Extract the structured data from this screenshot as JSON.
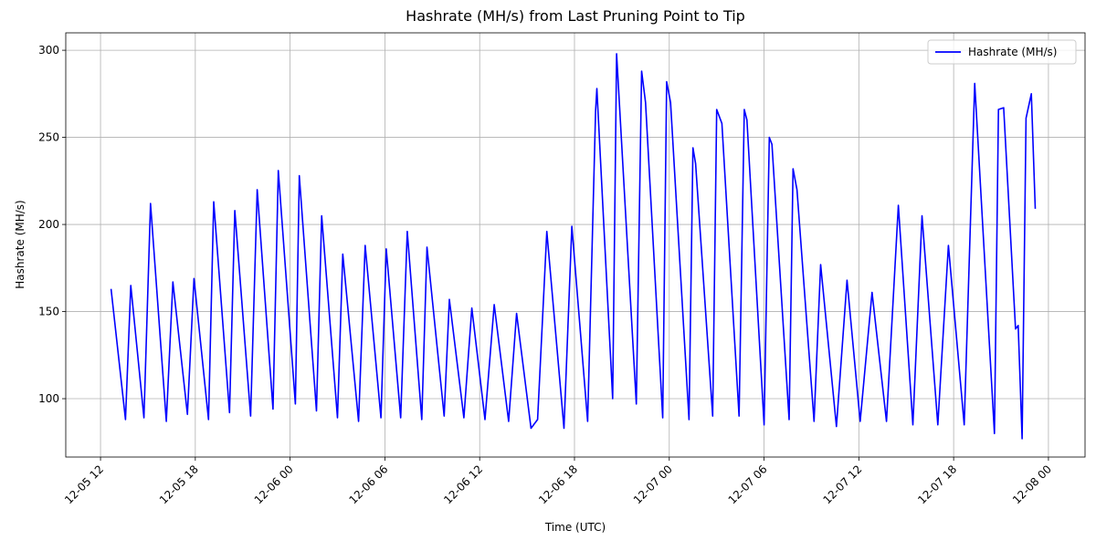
{
  "chart_data": {
    "type": "line",
    "title": "Hashrate (MH/s) from Last Pruning Point to Tip",
    "x_label": "Time (UTC)",
    "y_label": "Hashrate (MH/s)",
    "x": [
      "12-05 12:40",
      "12-05 13:35",
      "12-05 13:55",
      "12-05 14:45",
      "12-05 15:10",
      "12-05 16:10",
      "12-05 16:35",
      "12-05 17:30",
      "12-05 17:55",
      "12-05 18:50",
      "12-05 19:10",
      "12-05 20:10",
      "12-05 20:30",
      "12-05 21:30",
      "12-05 21:55",
      "12-05 22:55",
      "12-05 23:15",
      "12-06 00:20",
      "12-06 00:35",
      "12-06 01:40",
      "12-06 02:00",
      "12-06 03:00",
      "12-06 03:20",
      "12-06 04:20",
      "12-06 04:45",
      "12-06 05:45",
      "12-06 06:05",
      "12-06 07:00",
      "12-06 07:25",
      "12-06 08:20",
      "12-06 08:40",
      "12-06 09:45",
      "12-06 10:05",
      "12-06 11:00",
      "12-06 11:30",
      "12-06 12:20",
      "12-06 12:55",
      "12-06 13:50",
      "12-06 14:20",
      "12-06 15:15",
      "12-06 15:40",
      "12-06 16:15",
      "12-06 17:20",
      "12-06 17:50",
      "12-06 18:50",
      "12-06 19:20",
      "12-06 19:25",
      "12-06 20:25",
      "12-06 20:40",
      "12-06 21:55",
      "12-06 22:15",
      "12-06 22:30",
      "12-06 23:35",
      "12-06 23:50",
      "12-07 00:05",
      "12-07 01:15",
      "12-07 01:30",
      "12-07 01:40",
      "12-07 02:45",
      "12-07 03:00",
      "12-07 03:20",
      "12-07 04:25",
      "12-07 04:45",
      "12-07 04:55",
      "12-07 06:00",
      "12-07 06:20",
      "12-07 06:30",
      "12-07 07:35",
      "12-07 07:50",
      "12-07 08:05",
      "12-07 09:10",
      "12-07 09:35",
      "12-07 10:35",
      "12-07 11:15",
      "12-07 12:05",
      "12-07 12:50",
      "12-07 13:45",
      "12-07 14:30",
      "12-07 15:25",
      "12-07 16:00",
      "12-07 17:00",
      "12-07 17:40",
      "12-07 18:40",
      "12-07 19:20",
      "12-07 20:35",
      "12-07 20:50",
      "12-07 21:10",
      "12-07 21:55",
      "12-07 22:05",
      "12-07 22:20",
      "12-07 22:35",
      "12-07 22:55",
      "12-07 23:10"
    ],
    "series": [
      {
        "name": "Hashrate (MH/s)",
        "color": "#0000ff",
        "values": [
          163,
          88,
          165,
          89,
          212,
          87,
          167,
          91,
          169,
          88,
          213,
          92,
          208,
          90,
          220,
          94,
          231,
          97,
          228,
          93,
          205,
          89,
          183,
          87,
          188,
          89,
          186,
          89,
          196,
          88,
          187,
          90,
          157,
          89,
          152,
          88,
          154,
          87,
          149,
          83,
          88,
          196,
          83,
          199,
          87,
          265,
          278,
          100,
          298,
          97,
          288,
          270,
          89,
          282,
          270,
          88,
          244,
          235,
          90,
          266,
          258,
          90,
          266,
          260,
          85,
          250,
          246,
          88,
          232,
          220,
          87,
          177,
          84,
          168,
          87,
          161,
          87,
          211,
          85,
          205,
          85,
          188,
          85,
          281,
          80,
          266,
          267,
          140,
          142,
          77,
          261,
          275,
          209
        ]
      }
    ],
    "xlim": [
      "12-05 09:48",
      "12-08 02:19"
    ],
    "xticks": [
      {
        "value": "12-05 12:00",
        "label": "12-05 12"
      },
      {
        "value": "12-05 18:00",
        "label": "12-05 18"
      },
      {
        "value": "12-06 00:00",
        "label": "12-06 00"
      },
      {
        "value": "12-06 06:00",
        "label": "12-06 06"
      },
      {
        "value": "12-06 12:00",
        "label": "12-06 12"
      },
      {
        "value": "12-06 18:00",
        "label": "12-06 18"
      },
      {
        "value": "12-07 00:00",
        "label": "12-07 00"
      },
      {
        "value": "12-07 06:00",
        "label": "12-07 06"
      },
      {
        "value": "12-07 12:00",
        "label": "12-07 12"
      },
      {
        "value": "12-07 18:00",
        "label": "12-07 18"
      },
      {
        "value": "12-08 00:00",
        "label": "12-08 00"
      }
    ],
    "ylim": [
      66.5,
      310
    ],
    "yticks": [
      100,
      150,
      200,
      250,
      300
    ],
    "grid": true,
    "legend": "upper right"
  }
}
